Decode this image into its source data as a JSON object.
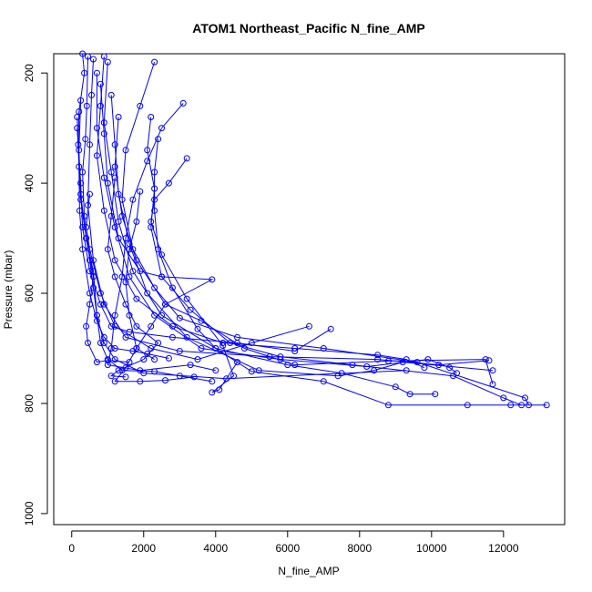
{
  "chart_data": {
    "type": "line",
    "title": "ATOM1 Northeast_Pacific N_fine_AMP",
    "xlabel": "N_fine_AMP",
    "ylabel": "Pressure (mbar)",
    "xlim": [
      -500,
      13700
    ],
    "ylim": [
      1020,
      165
    ],
    "y_reversed": true,
    "grid": false,
    "x_ticks": [
      0,
      2000,
      4000,
      6000,
      8000,
      10000,
      12000
    ],
    "y_ticks": [
      200,
      400,
      600,
      800,
      1000
    ],
    "color": "#0000ff",
    "series": [
      {
        "points": [
          [
            300,
            165
          ],
          [
            350,
            200
          ],
          [
            200,
            270
          ],
          [
            180,
            330
          ],
          [
            250,
            420
          ],
          [
            400,
            500
          ],
          [
            600,
            560
          ],
          [
            700,
            640
          ],
          [
            900,
            690
          ],
          [
            1200,
            720
          ],
          [
            2000,
            745
          ],
          [
            4300,
            755
          ],
          [
            9300,
            740
          ]
        ]
      },
      {
        "points": [
          [
            450,
            170
          ],
          [
            420,
            260
          ],
          [
            380,
            320
          ],
          [
            300,
            380
          ],
          [
            350,
            460
          ],
          [
            500,
            520
          ],
          [
            800,
            600
          ],
          [
            1200,
            660
          ],
          [
            2200,
            700
          ],
          [
            3500,
            720
          ],
          [
            5000,
            690
          ],
          [
            6600,
            660
          ]
        ]
      },
      {
        "points": [
          [
            600,
            175
          ],
          [
            550,
            240
          ],
          [
            500,
            330
          ],
          [
            450,
            440
          ],
          [
            600,
            540
          ],
          [
            900,
            620
          ],
          [
            1500,
            680
          ],
          [
            3000,
            705
          ],
          [
            5500,
            715
          ],
          [
            8500,
            720
          ],
          [
            10200,
            730
          ],
          [
            11600,
            722
          ]
        ]
      },
      {
        "points": [
          [
            900,
            170
          ],
          [
            800,
            260
          ],
          [
            700,
            350
          ],
          [
            900,
            450
          ],
          [
            1200,
            540
          ],
          [
            1800,
            610
          ],
          [
            2800,
            660
          ],
          [
            4200,
            690
          ],
          [
            6200,
            700
          ],
          [
            8500,
            712
          ],
          [
            9300,
            720
          ],
          [
            9800,
            735
          ]
        ]
      },
      {
        "points": [
          [
            1000,
            180
          ],
          [
            900,
            290
          ],
          [
            1100,
            380
          ],
          [
            1300,
            470
          ],
          [
            1700,
            560
          ],
          [
            2500,
            640
          ],
          [
            4000,
            700
          ],
          [
            6000,
            730
          ],
          [
            7500,
            745
          ],
          [
            9000,
            770
          ],
          [
            9400,
            783
          ],
          [
            10100,
            783
          ]
        ]
      },
      {
        "points": [
          [
            700,
            200
          ],
          [
            700,
            300
          ],
          [
            900,
            390
          ],
          [
            1200,
            480
          ],
          [
            1600,
            570
          ],
          [
            2300,
            640
          ],
          [
            3600,
            700
          ],
          [
            5800,
            720
          ],
          [
            8200,
            733
          ],
          [
            9900,
            720
          ],
          [
            10500,
            735
          ],
          [
            10700,
            745
          ]
        ]
      },
      {
        "points": [
          [
            1100,
            240
          ],
          [
            1200,
            330
          ],
          [
            1300,
            420
          ],
          [
            1600,
            510
          ],
          [
            2100,
            600
          ],
          [
            3200,
            680
          ],
          [
            5200,
            740
          ],
          [
            7400,
            750
          ],
          [
            8400,
            740
          ],
          [
            9200,
            725
          ],
          [
            11700,
            740
          ]
        ]
      },
      {
        "points": [
          [
            1300,
            280
          ],
          [
            1200,
            370
          ],
          [
            1400,
            460
          ],
          [
            1800,
            540
          ],
          [
            2600,
            620
          ],
          [
            3600,
            650
          ],
          [
            4800,
            700
          ],
          [
            6200,
            730
          ],
          [
            8800,
            723
          ],
          [
            11500,
            720
          ],
          [
            11700,
            765
          ]
        ]
      },
      {
        "points": [
          [
            2300,
            180
          ],
          [
            1900,
            260
          ],
          [
            1500,
            340
          ],
          [
            1400,
            430
          ],
          [
            1700,
            520
          ],
          [
            2300,
            590
          ],
          [
            3000,
            645
          ],
          [
            4600,
            680
          ],
          [
            7000,
            700
          ],
          [
            9600,
            725
          ],
          [
            12600,
            790
          ],
          [
            12700,
            803
          ]
        ]
      },
      {
        "points": [
          [
            2200,
            280
          ],
          [
            2100,
            340
          ],
          [
            2300,
            410
          ],
          [
            2200,
            480
          ],
          [
            2500,
            570
          ],
          [
            3300,
            630
          ],
          [
            4400,
            690
          ],
          [
            5800,
            715
          ],
          [
            7800,
            730
          ],
          [
            10600,
            750
          ],
          [
            12000,
            790
          ],
          [
            12500,
            803
          ]
        ]
      },
      {
        "points": [
          [
            2400,
            320
          ],
          [
            2300,
            380
          ],
          [
            2300,
            450
          ],
          [
            2400,
            520
          ],
          [
            2800,
            590
          ],
          [
            3500,
            665
          ],
          [
            4000,
            700
          ],
          [
            5000,
            742
          ],
          [
            7000,
            760
          ],
          [
            8800,
            803
          ],
          [
            11000,
            803
          ],
          [
            12200,
            803
          ],
          [
            13200,
            803
          ]
        ]
      },
      {
        "points": [
          [
            3200,
            355
          ],
          [
            2700,
            400
          ],
          [
            2300,
            430
          ],
          [
            2200,
            470
          ],
          [
            2500,
            530
          ],
          [
            3200,
            610
          ],
          [
            4200,
            695
          ],
          [
            4500,
            750
          ],
          [
            3900,
            780
          ],
          [
            4100,
            775
          ],
          [
            4600,
            725
          ]
        ]
      },
      {
        "points": [
          [
            1900,
            415
          ],
          [
            1800,
            470
          ],
          [
            1600,
            520
          ],
          [
            1500,
            580
          ],
          [
            1600,
            640
          ],
          [
            1800,
            700
          ],
          [
            1500,
            735
          ],
          [
            1200,
            760
          ],
          [
            1900,
            760
          ],
          [
            2600,
            758
          ],
          [
            3400,
            752
          ]
        ]
      },
      {
        "points": [
          [
            500,
            420
          ],
          [
            400,
            480
          ],
          [
            500,
            540
          ],
          [
            600,
            590
          ],
          [
            700,
            640
          ],
          [
            800,
            690
          ],
          [
            1000,
            720
          ],
          [
            1400,
            740
          ],
          [
            2300,
            742
          ],
          [
            3000,
            750
          ],
          [
            3900,
            760
          ]
        ]
      },
      {
        "points": [
          [
            150,
            280
          ],
          [
            200,
            370
          ],
          [
            220,
            450
          ],
          [
            300,
            520
          ],
          [
            500,
            600
          ],
          [
            700,
            650
          ],
          [
            900,
            680
          ],
          [
            1200,
            700
          ],
          [
            1700,
            705
          ],
          [
            2100,
            710
          ],
          [
            2700,
            718
          ]
        ]
      },
      {
        "points": [
          [
            1200,
            390
          ],
          [
            1100,
            460
          ],
          [
            1000,
            520
          ],
          [
            1200,
            570
          ],
          [
            1500,
            620
          ],
          [
            1800,
            660
          ],
          [
            2400,
            690
          ],
          [
            2000,
            720
          ],
          [
            1300,
            740
          ],
          [
            1100,
            750
          ],
          [
            1500,
            752
          ]
        ]
      },
      {
        "points": [
          [
            250,
            250
          ],
          [
            200,
            340
          ],
          [
            250,
            430
          ],
          [
            400,
            500
          ],
          [
            600,
            570
          ],
          [
            500,
            620
          ],
          [
            400,
            660
          ],
          [
            450,
            690
          ],
          [
            700,
            725
          ],
          [
            1000,
            722
          ],
          [
            1600,
            725
          ]
        ]
      },
      {
        "points": [
          [
            800,
            220
          ],
          [
            900,
            310
          ],
          [
            1000,
            400
          ],
          [
            1300,
            500
          ],
          [
            1900,
            560
          ],
          [
            2500,
            570
          ],
          [
            3900,
            575
          ],
          [
            2600,
            620
          ],
          [
            2200,
            660
          ],
          [
            1800,
            700
          ],
          [
            2300,
            720
          ]
        ]
      },
      {
        "points": [
          [
            3100,
            255
          ],
          [
            2500,
            300
          ],
          [
            2100,
            360
          ],
          [
            1700,
            430
          ],
          [
            1500,
            500
          ],
          [
            1400,
            570
          ],
          [
            1200,
            640
          ],
          [
            1100,
            700
          ],
          [
            1000,
            730
          ],
          [
            1900,
            740
          ],
          [
            3300,
            730
          ],
          [
            4000,
            740
          ]
        ]
      },
      {
        "points": [
          [
            150,
            300
          ],
          [
            250,
            400
          ],
          [
            300,
            480
          ],
          [
            500,
            560
          ],
          [
            800,
            620
          ],
          [
            1100,
            660
          ],
          [
            1600,
            670
          ],
          [
            2800,
            680
          ],
          [
            4600,
            690
          ],
          [
            6200,
            705
          ],
          [
            7200,
            665
          ]
        ]
      }
    ]
  }
}
